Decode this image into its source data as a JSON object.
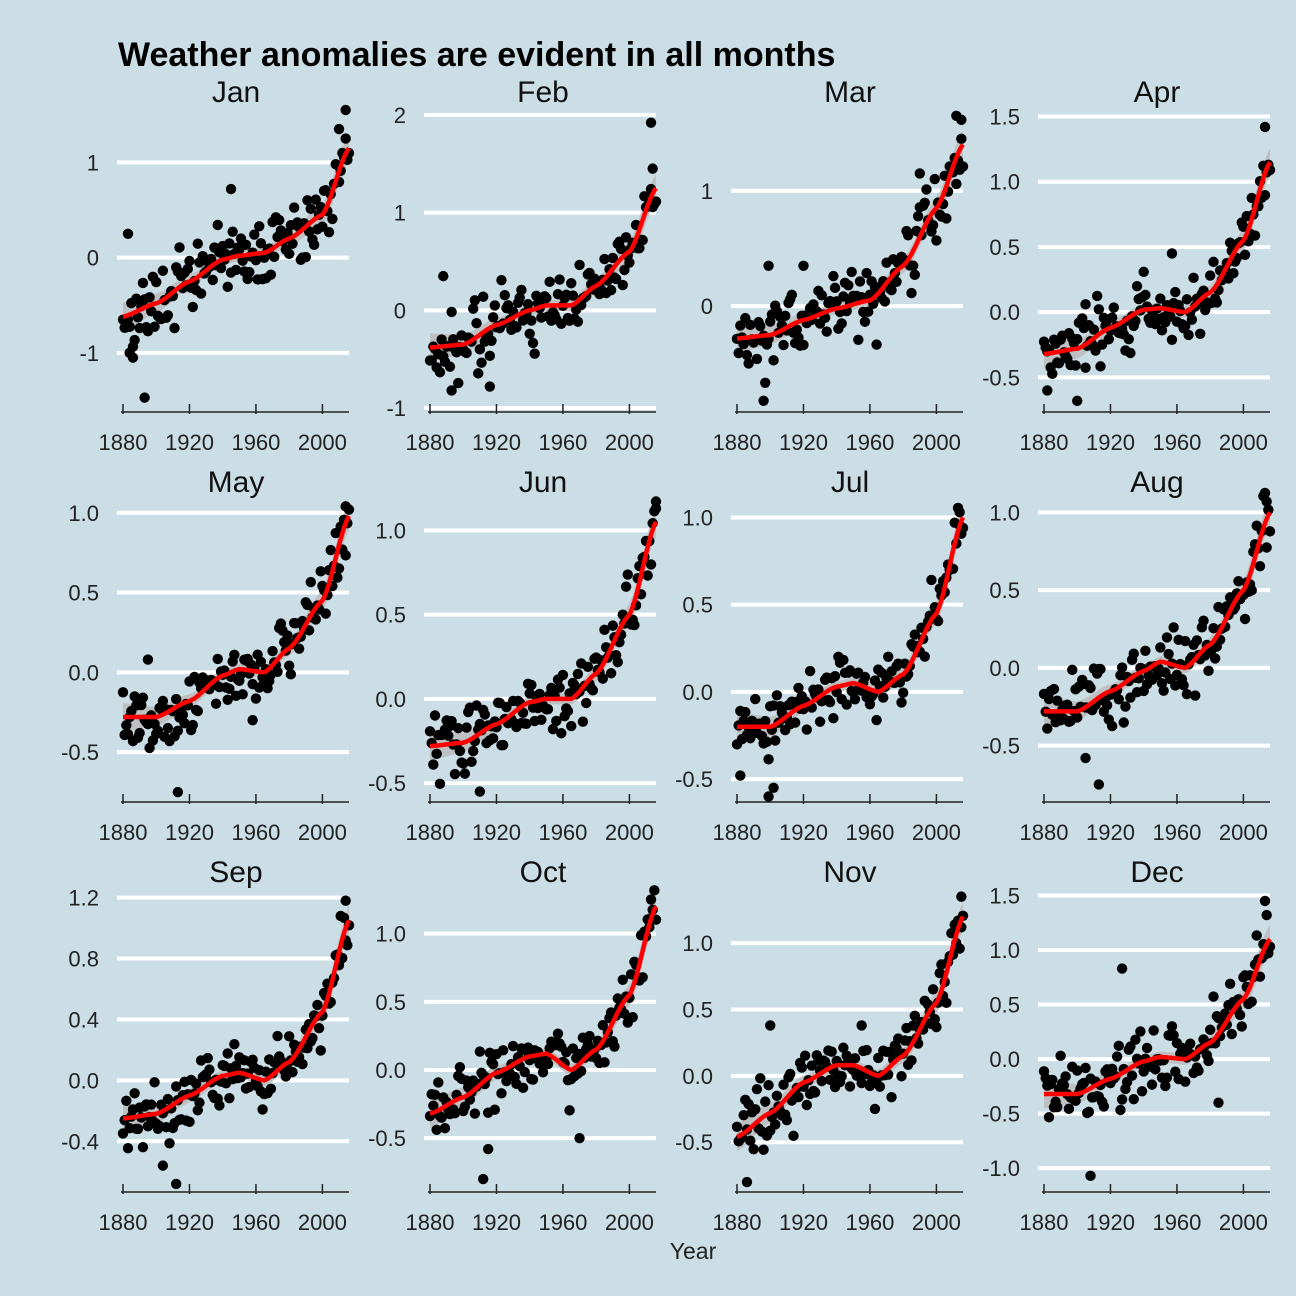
{
  "title": "Weather anomalies are evident in all months",
  "xlabel": "Year",
  "colors": {
    "background": "#cbdee6",
    "grid": "#ffffff",
    "points": "#000000",
    "trend": "#ff0000",
    "band": "#bcbcbc"
  },
  "chart_data": {
    "type": "scatter",
    "title": "Weather anomalies are evident in all months",
    "xlabel": "Year",
    "x_ticks": [
      1880,
      1920,
      1960,
      2000
    ],
    "xlim": [
      1880,
      2016
    ],
    "grid": "horizontal",
    "trend_line": "smoothed",
    "panels": [
      {
        "name": "Jan",
        "ylim": [
          -1.6,
          1.55
        ],
        "y_ticks": [
          -1,
          0,
          1
        ],
        "tick_labels": [
          "-1",
          "0",
          "1"
        ],
        "trend": [
          [
            1880,
            -0.62
          ],
          [
            1900,
            -0.48
          ],
          [
            1920,
            -0.25
          ],
          [
            1940,
            -0.02
          ],
          [
            1950,
            0.02
          ],
          [
            1965,
            0.05
          ],
          [
            1980,
            0.2
          ],
          [
            2000,
            0.45
          ],
          [
            2016,
            1.15
          ]
        ],
        "outliers": [
          [
            1883,
            0.25
          ],
          [
            1884,
            -1.0
          ],
          [
            1886,
            -1.05
          ],
          [
            1893,
            -1.47
          ],
          [
            1945,
            0.72
          ],
          [
            2010,
            1.35
          ],
          [
            2014,
            1.55
          ]
        ]
      },
      {
        "name": "Feb",
        "ylim": [
          -1.02,
          2.05
        ],
        "y_ticks": [
          -1,
          0,
          1,
          2
        ],
        "tick_labels": [
          "-1",
          "0",
          "1",
          "2"
        ],
        "trend": [
          [
            1880,
            -0.38
          ],
          [
            1900,
            -0.35
          ],
          [
            1920,
            -0.15
          ],
          [
            1940,
            0.0
          ],
          [
            1950,
            0.05
          ],
          [
            1965,
            0.05
          ],
          [
            1980,
            0.25
          ],
          [
            2000,
            0.6
          ],
          [
            2016,
            1.25
          ]
        ],
        "outliers": [
          [
            1888,
            0.35
          ],
          [
            1893,
            -0.82
          ],
          [
            1916,
            -0.78
          ],
          [
            2013,
            1.92
          ],
          [
            2014,
            1.45
          ]
        ]
      },
      {
        "name": "Mar",
        "ylim": [
          -0.9,
          1.7
        ],
        "y_ticks": [
          0,
          1
        ],
        "tick_labels": [
          "0",
          "1"
        ],
        "trend": [
          [
            1880,
            -0.28
          ],
          [
            1900,
            -0.25
          ],
          [
            1920,
            -0.12
          ],
          [
            1940,
            -0.02
          ],
          [
            1960,
            0.05
          ],
          [
            1980,
            0.35
          ],
          [
            2000,
            0.85
          ],
          [
            2016,
            1.4
          ]
        ],
        "outliers": [
          [
            1896,
            -0.82
          ],
          [
            1899,
            0.35
          ],
          [
            1920,
            0.35
          ],
          [
            1990,
            1.15
          ],
          [
            2012,
            1.65
          ],
          [
            2015,
            1.45
          ]
        ]
      },
      {
        "name": "Apr",
        "ylim": [
          -0.75,
          1.55
        ],
        "y_ticks": [
          -0.5,
          0.0,
          0.5,
          1.0,
          1.5
        ],
        "tick_labels": [
          "-0.5",
          "0.0",
          "0.5",
          "1.0",
          "1.5"
        ],
        "trend": [
          [
            1880,
            -0.32
          ],
          [
            1900,
            -0.28
          ],
          [
            1920,
            -0.12
          ],
          [
            1940,
            0.02
          ],
          [
            1950,
            0.03
          ],
          [
            1965,
            0.0
          ],
          [
            1980,
            0.15
          ],
          [
            2000,
            0.55
          ],
          [
            2016,
            1.15
          ]
        ],
        "outliers": [
          [
            1882,
            -0.6
          ],
          [
            1900,
            -0.68
          ],
          [
            1905,
            0.06
          ],
          [
            1957,
            0.45
          ],
          [
            2013,
            1.42
          ]
        ]
      },
      {
        "name": "May",
        "ylim": [
          -0.8,
          1.08
        ],
        "y_ticks": [
          -0.5,
          0.0,
          0.5,
          1.0
        ],
        "tick_labels": [
          "-0.5",
          "0.0",
          "0.5",
          "1.0"
        ],
        "trend": [
          [
            1880,
            -0.28
          ],
          [
            1900,
            -0.28
          ],
          [
            1920,
            -0.18
          ],
          [
            1940,
            -0.02
          ],
          [
            1950,
            0.02
          ],
          [
            1965,
            0.0
          ],
          [
            1980,
            0.15
          ],
          [
            2000,
            0.45
          ],
          [
            2016,
            0.98
          ]
        ],
        "outliers": [
          [
            1895,
            0.08
          ],
          [
            1913,
            -0.75
          ],
          [
            1958,
            -0.3
          ],
          [
            2014,
            1.04
          ]
        ]
      },
      {
        "name": "Jun",
        "ylim": [
          -0.6,
          1.18
        ],
        "y_ticks": [
          -0.5,
          0.0,
          0.5,
          1.0
        ],
        "tick_labels": [
          "-0.5",
          "0.0",
          "0.5",
          "1.0"
        ],
        "trend": [
          [
            1880,
            -0.28
          ],
          [
            1900,
            -0.26
          ],
          [
            1920,
            -0.15
          ],
          [
            1940,
            -0.02
          ],
          [
            1950,
            0.0
          ],
          [
            1965,
            0.0
          ],
          [
            1980,
            0.15
          ],
          [
            2000,
            0.5
          ],
          [
            2016,
            1.05
          ]
        ],
        "outliers": [
          [
            1910,
            -0.55
          ],
          [
            2016,
            1.13
          ]
        ]
      },
      {
        "name": "Jul",
        "ylim": [
          -0.62,
          1.1
        ],
        "y_ticks": [
          -0.5,
          0.0,
          0.5,
          1.0
        ],
        "tick_labels": [
          "-0.5",
          "0.0",
          "0.5",
          "1.0"
        ],
        "trend": [
          [
            1880,
            -0.2
          ],
          [
            1900,
            -0.2
          ],
          [
            1920,
            -0.08
          ],
          [
            1940,
            0.03
          ],
          [
            1950,
            0.05
          ],
          [
            1965,
            0.0
          ],
          [
            1980,
            0.1
          ],
          [
            2000,
            0.45
          ],
          [
            2016,
            1.0
          ]
        ],
        "outliers": [
          [
            1882,
            -0.48
          ],
          [
            1899,
            -0.6
          ],
          [
            1902,
            -0.55
          ],
          [
            2014,
            1.03
          ]
        ]
      },
      {
        "name": "Aug",
        "ylim": [
          -0.85,
          1.08
        ],
        "y_ticks": [
          -0.5,
          0.0,
          0.5,
          1.0
        ],
        "tick_labels": [
          "-0.5",
          "0.0",
          "0.5",
          "1.0"
        ],
        "trend": [
          [
            1880,
            -0.28
          ],
          [
            1900,
            -0.28
          ],
          [
            1920,
            -0.15
          ],
          [
            1940,
            -0.02
          ],
          [
            1950,
            0.04
          ],
          [
            1965,
            0.0
          ],
          [
            1980,
            0.15
          ],
          [
            2000,
            0.5
          ],
          [
            2016,
            1.0
          ]
        ],
        "outliers": [
          [
            1913,
            -0.75
          ],
          [
            1905,
            -0.58
          ],
          [
            2014,
            1.07
          ]
        ]
      },
      {
        "name": "Sep",
        "ylim": [
          -0.72,
          1.25
        ],
        "y_ticks": [
          -0.4,
          0.0,
          0.4,
          0.8,
          1.2
        ],
        "tick_labels": [
          "-0.4",
          "0.0",
          "0.4",
          "0.8",
          "1.2"
        ],
        "trend": [
          [
            1880,
            -0.25
          ],
          [
            1900,
            -0.22
          ],
          [
            1920,
            -0.1
          ],
          [
            1940,
            0.03
          ],
          [
            1950,
            0.05
          ],
          [
            1965,
            0.0
          ],
          [
            1980,
            0.12
          ],
          [
            2000,
            0.45
          ],
          [
            2016,
            1.05
          ]
        ],
        "outliers": [
          [
            1912,
            -0.68
          ],
          [
            1904,
            -0.56
          ],
          [
            2014,
            1.18
          ]
        ]
      },
      {
        "name": "Oct",
        "ylim": [
          -0.88,
          1.32
        ],
        "y_ticks": [
          -0.5,
          0.0,
          0.5,
          1.0
        ],
        "tick_labels": [
          "-0.5",
          "0.0",
          "0.5",
          "1.0"
        ],
        "trend": [
          [
            1880,
            -0.32
          ],
          [
            1900,
            -0.2
          ],
          [
            1920,
            -0.02
          ],
          [
            1940,
            0.1
          ],
          [
            1950,
            0.12
          ],
          [
            1965,
            0.0
          ],
          [
            1980,
            0.15
          ],
          [
            2000,
            0.55
          ],
          [
            2016,
            1.2
          ]
        ],
        "outliers": [
          [
            1912,
            -0.8
          ],
          [
            1915,
            -0.58
          ],
          [
            1970,
            -0.5
          ],
          [
            2013,
            1.25
          ]
        ]
      },
      {
        "name": "Nov",
        "ylim": [
          -0.86,
          1.4
        ],
        "y_ticks": [
          -0.5,
          0.0,
          0.5,
          1.0
        ],
        "tick_labels": [
          "-0.5",
          "0.0",
          "0.5",
          "1.0"
        ],
        "trend": [
          [
            1880,
            -0.46
          ],
          [
            1900,
            -0.28
          ],
          [
            1920,
            -0.05
          ],
          [
            1940,
            0.08
          ],
          [
            1950,
            0.08
          ],
          [
            1965,
            0.0
          ],
          [
            1980,
            0.15
          ],
          [
            2000,
            0.55
          ],
          [
            2016,
            1.2
          ]
        ],
        "outliers": [
          [
            1886,
            -0.8
          ],
          [
            1900,
            0.38
          ],
          [
            1955,
            0.38
          ],
          [
            2015,
            1.35
          ]
        ]
      },
      {
        "name": "Dec",
        "ylim": [
          -1.2,
          1.55
        ],
        "y_ticks": [
          -1.0,
          -0.5,
          0.0,
          0.5,
          1.0,
          1.5
        ],
        "tick_labels": [
          "-1.0",
          "-0.5",
          "0.0",
          "0.5",
          "1.0",
          "1.5"
        ],
        "trend": [
          [
            1880,
            -0.32
          ],
          [
            1900,
            -0.32
          ],
          [
            1920,
            -0.18
          ],
          [
            1940,
            -0.02
          ],
          [
            1950,
            0.02
          ],
          [
            1965,
            0.0
          ],
          [
            1980,
            0.15
          ],
          [
            2000,
            0.55
          ],
          [
            2016,
            1.1
          ]
        ],
        "outliers": [
          [
            1908,
            -1.07
          ],
          [
            1927,
            0.83
          ],
          [
            1985,
            -0.4
          ],
          [
            2013,
            1.45
          ],
          [
            2014,
            1.32
          ]
        ]
      }
    ]
  }
}
